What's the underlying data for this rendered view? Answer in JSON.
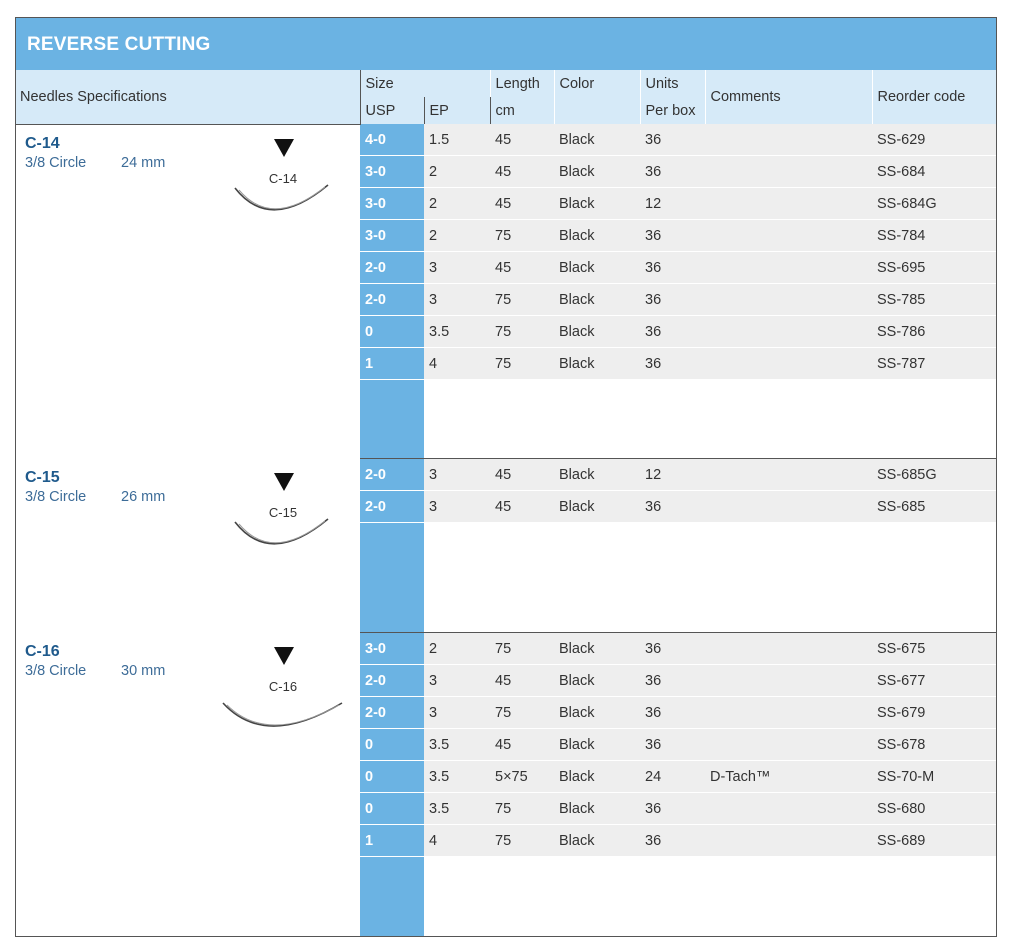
{
  "title": "REVERSE CUTTING",
  "headers": {
    "needles": "Needles Specifications",
    "size": "Size",
    "usp": "USP",
    "ep": "EP",
    "length": "Length",
    "length_unit": "cm",
    "color": "Color",
    "units": "Units",
    "units_sub": "Per box",
    "comments": "Comments",
    "reorder": "Reorder code"
  },
  "groups": [
    {
      "name": "C-14",
      "curve": "3/8 Circle",
      "size": "24 mm",
      "label": "C-14",
      "rows": [
        {
          "usp": "4-0",
          "ep": "1.5",
          "length": "45",
          "color": "Black",
          "units": "36",
          "comments": "",
          "code": "SS-629"
        },
        {
          "usp": "3-0",
          "ep": "2",
          "length": "45",
          "color": "Black",
          "units": "36",
          "comments": "",
          "code": "SS-684"
        },
        {
          "usp": "3-0",
          "ep": "2",
          "length": "45",
          "color": "Black",
          "units": "12",
          "comments": "",
          "code": "SS-684G"
        },
        {
          "usp": "3-0",
          "ep": "2",
          "length": "75",
          "color": "Black",
          "units": "36",
          "comments": "",
          "code": "SS-784"
        },
        {
          "usp": "2-0",
          "ep": "3",
          "length": "45",
          "color": "Black",
          "units": "36",
          "comments": "",
          "code": "SS-695"
        },
        {
          "usp": "2-0",
          "ep": "3",
          "length": "75",
          "color": "Black",
          "units": "36",
          "comments": "",
          "code": "SS-785"
        },
        {
          "usp": "0",
          "ep": "3.5",
          "length": "75",
          "color": "Black",
          "units": "36",
          "comments": "",
          "code": "SS-786"
        },
        {
          "usp": "1",
          "ep": "4",
          "length": "75",
          "color": "Black",
          "units": "36",
          "comments": "",
          "code": "SS-787"
        }
      ]
    },
    {
      "name": "C-15",
      "curve": "3/8 Circle",
      "size": "26 mm",
      "label": "C-15",
      "rows": [
        {
          "usp": "2-0",
          "ep": "3",
          "length": "45",
          "color": "Black",
          "units": "12",
          "comments": "",
          "code": "SS-685G"
        },
        {
          "usp": "2-0",
          "ep": "3",
          "length": "45",
          "color": "Black",
          "units": "36",
          "comments": "",
          "code": "SS-685"
        }
      ]
    },
    {
      "name": "C-16",
      "curve": "3/8 Circle",
      "size": "30 mm",
      "label": "C-16",
      "rows": [
        {
          "usp": "3-0",
          "ep": "2",
          "length": "75",
          "color": "Black",
          "units": "36",
          "comments": "",
          "code": "SS-675"
        },
        {
          "usp": "2-0",
          "ep": "3",
          "length": "45",
          "color": "Black",
          "units": "36",
          "comments": "",
          "code": "SS-677"
        },
        {
          "usp": "2-0",
          "ep": "3",
          "length": "75",
          "color": "Black",
          "units": "36",
          "comments": "",
          "code": "SS-679"
        },
        {
          "usp": "0",
          "ep": "3.5",
          "length": "45",
          "color": "Black",
          "units": "36",
          "comments": "",
          "code": "SS-678"
        },
        {
          "usp": "0",
          "ep": "3.5",
          "length": "5×75",
          "color": "Black",
          "units": "24",
          "comments": "D-Tach™",
          "code": "SS-70-M"
        },
        {
          "usp": "0",
          "ep": "3.5",
          "length": "75",
          "color": "Black",
          "units": "36",
          "comments": "",
          "code": "SS-680"
        },
        {
          "usp": "1",
          "ep": "4",
          "length": "75",
          "color": "Black",
          "units": "36",
          "comments": "",
          "code": "SS-689"
        }
      ]
    }
  ]
}
